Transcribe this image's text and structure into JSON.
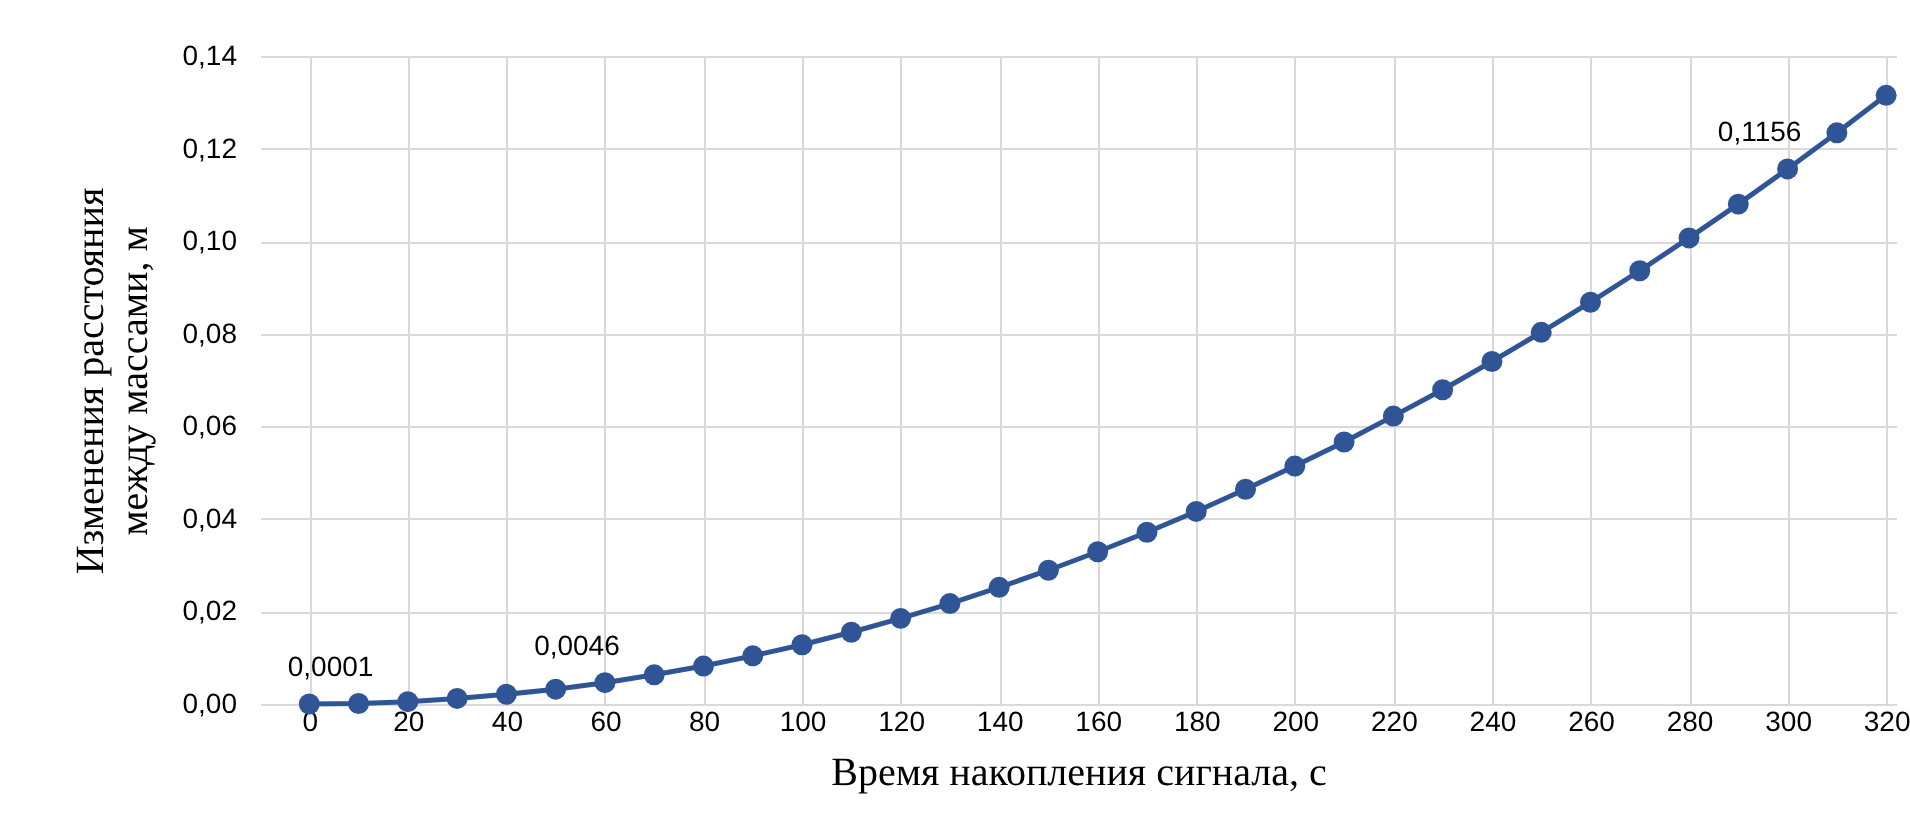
{
  "chart_data": {
    "type": "line",
    "xlabel": "Время накопления сигнала, с",
    "ylabel": "Изменения расстояния\nмежду массами, м",
    "x": [
      0,
      10,
      20,
      30,
      40,
      50,
      60,
      70,
      80,
      90,
      100,
      110,
      120,
      130,
      140,
      150,
      160,
      170,
      180,
      190,
      200,
      210,
      220,
      230,
      240,
      250,
      260,
      270,
      280,
      290,
      300,
      310,
      320
    ],
    "series": [
      {
        "color": "#2f5597",
        "values": [
          0,
          0.0001,
          0.0005,
          0.0012,
          0.0021,
          0.0032,
          0.0046,
          0.0063,
          0.0082,
          0.0104,
          0.0128,
          0.0155,
          0.0185,
          0.0217,
          0.0252,
          0.0289,
          0.0329,
          0.0371,
          0.0416,
          0.0464,
          0.0514,
          0.0566,
          0.0622,
          0.0679,
          0.074,
          0.0803,
          0.0868,
          0.0936,
          0.1007,
          0.108,
          0.1156,
          0.1234,
          0.1315
        ],
        "value_labels": [
          null,
          "0,0001",
          null,
          null,
          null,
          null,
          "0,0046",
          null,
          null,
          null,
          null,
          null,
          null,
          null,
          null,
          null,
          null,
          null,
          null,
          null,
          null,
          null,
          null,
          null,
          null,
          null,
          null,
          null,
          null,
          null,
          "0,1156",
          null,
          null
        ]
      }
    ],
    "xlim": [
      -10,
      322
    ],
    "xticks": [
      0,
      20,
      40,
      60,
      80,
      100,
      120,
      140,
      160,
      180,
      200,
      220,
      240,
      260,
      280,
      300,
      320
    ],
    "ylim": [
      0,
      0.14
    ],
    "yticks": [
      {
        "value": 0,
        "label": "0,00"
      },
      {
        "value": 0.02,
        "label": "0,02"
      },
      {
        "value": 0.04,
        "label": "0,04"
      },
      {
        "value": 0.06,
        "label": "0,06"
      },
      {
        "value": 0.08,
        "label": "0,08"
      },
      {
        "value": 0.1,
        "label": "0,10"
      },
      {
        "value": 0.12,
        "label": "0,12"
      },
      {
        "value": 0.14,
        "label": "0,14"
      }
    ],
    "grid": true,
    "marker": "circle",
    "line_style": "solid"
  }
}
